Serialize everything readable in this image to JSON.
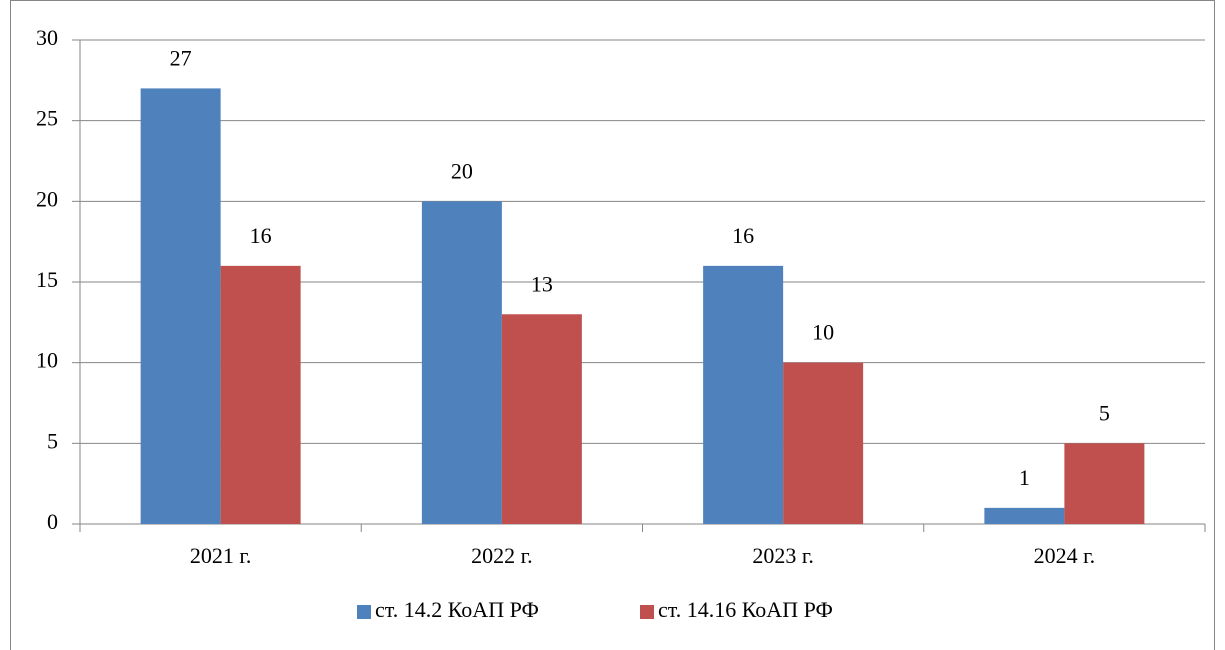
{
  "chart_data": {
    "type": "bar",
    "categories": [
      "2021 г.",
      "2022 г.",
      "2023 г.",
      "2024 г."
    ],
    "series": [
      {
        "name": "ст. 14.2 КоАП РФ",
        "color": "#4f81bd",
        "values": [
          27,
          20,
          16,
          1
        ]
      },
      {
        "name": "ст. 14.16 КоАП РФ",
        "color": "#c0504d",
        "values": [
          16,
          13,
          10,
          5
        ]
      }
    ],
    "ylim": [
      0,
      30
    ],
    "yticks": [
      0,
      5,
      10,
      15,
      20,
      25,
      30
    ],
    "grid": true,
    "legend": "bottom"
  }
}
